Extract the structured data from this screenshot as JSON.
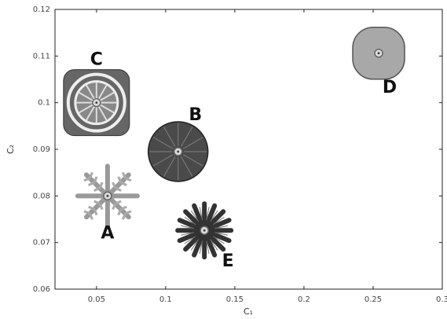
{
  "chart_data": {
    "type": "scatter",
    "x": [
      0.058,
      0.109,
      0.05,
      0.254,
      0.128
    ],
    "values": [
      0.08,
      0.0895,
      0.1,
      0.1106,
      0.0726
    ],
    "point_labels": [
      "A",
      "B",
      "C",
      "D",
      "E"
    ],
    "xlabel": "C₁",
    "ylabel": "C₂",
    "xlim": [
      0.02,
      0.3
    ],
    "ylim": [
      0.06,
      0.12
    ],
    "xticks": [
      0.05,
      0.1,
      0.15,
      0.2,
      0.25,
      0.3
    ],
    "yticks": [
      0.06,
      0.07,
      0.08,
      0.09,
      0.1,
      0.11,
      0.12
    ]
  }
}
